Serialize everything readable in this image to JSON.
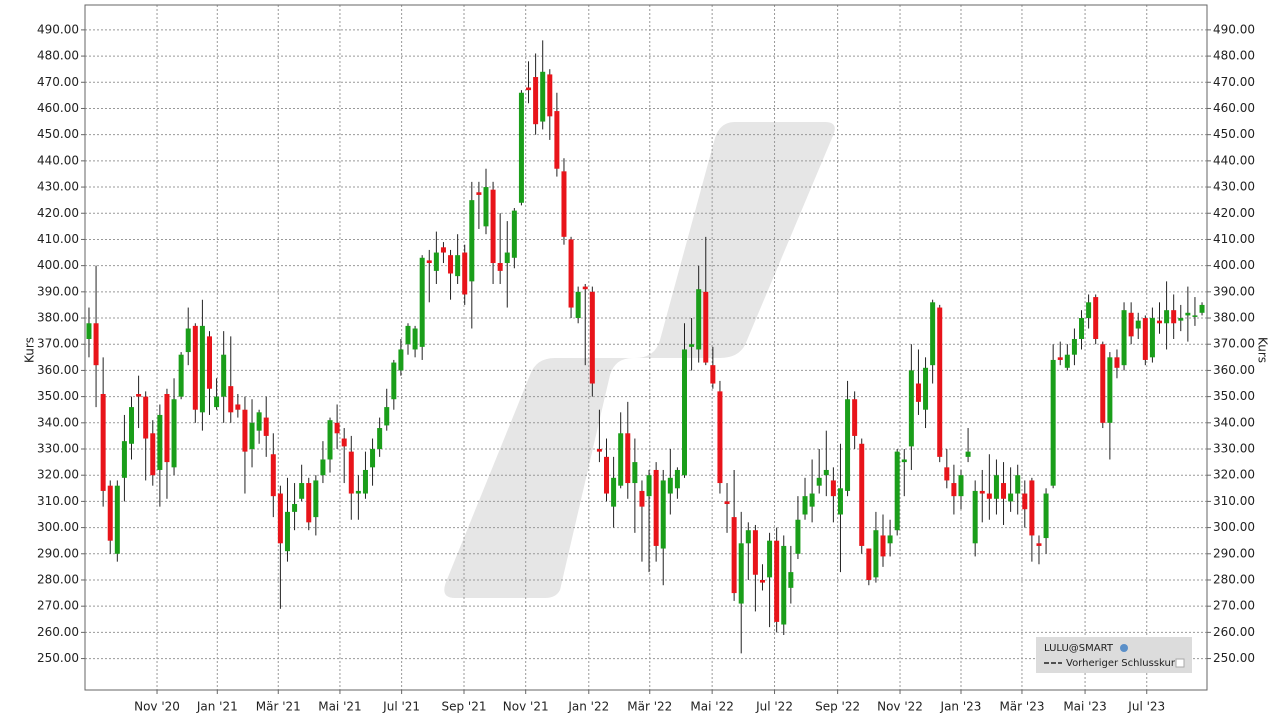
{
  "chart_data": {
    "type": "candlestick",
    "y_label": "Kurs",
    "ylim": [
      238,
      499.5
    ],
    "yticks": [
      {
        "value": 250,
        "label": "250.00"
      },
      {
        "value": 260,
        "label": "260.00"
      },
      {
        "value": 270,
        "label": "270.00"
      },
      {
        "value": 280,
        "label": "280.00"
      },
      {
        "value": 290,
        "label": "290.00"
      },
      {
        "value": 300,
        "label": "300.00"
      },
      {
        "value": 310,
        "label": "310.00"
      },
      {
        "value": 320,
        "label": "320.00"
      },
      {
        "value": 330,
        "label": "330.00"
      },
      {
        "value": 340,
        "label": "340.00"
      },
      {
        "value": 350,
        "label": "350.00"
      },
      {
        "value": 360,
        "label": "360.00"
      },
      {
        "value": 370,
        "label": "370.00"
      },
      {
        "value": 380,
        "label": "380.00"
      },
      {
        "value": 390,
        "label": "390.00"
      },
      {
        "value": 400,
        "label": "400.00"
      },
      {
        "value": 410,
        "label": "410.00"
      },
      {
        "value": 420,
        "label": "420.00"
      },
      {
        "value": 430,
        "label": "430.00"
      },
      {
        "value": 440,
        "label": "440.00"
      },
      {
        "value": 450,
        "label": "450.00"
      },
      {
        "value": 460,
        "label": "460.00"
      },
      {
        "value": 470,
        "label": "470.00"
      },
      {
        "value": 480,
        "label": "480.00"
      },
      {
        "value": 490,
        "label": "490.00"
      }
    ],
    "xlim": [
      -0.56,
      157.7
    ],
    "xticks": [
      {
        "value": 9.6,
        "label": "Nov '20"
      },
      {
        "value": 18.1,
        "label": "Jan '21"
      },
      {
        "value": 26.7,
        "label": "Mär '21"
      },
      {
        "value": 35.4,
        "label": "Mai '21"
      },
      {
        "value": 44.1,
        "label": "Jul '21"
      },
      {
        "value": 52.9,
        "label": "Sep '21"
      },
      {
        "value": 61.6,
        "label": "Nov '21"
      },
      {
        "value": 70.5,
        "label": "Jan '22"
      },
      {
        "value": 79.1,
        "label": "Mär '22"
      },
      {
        "value": 87.9,
        "label": "Mai '22"
      },
      {
        "value": 96.7,
        "label": "Jul '22"
      },
      {
        "value": 105.6,
        "label": "Sep '22"
      },
      {
        "value": 114.4,
        "label": "Nov '22"
      },
      {
        "value": 123,
        "label": "Jan '23"
      },
      {
        "value": 131.6,
        "label": "Mär '23"
      },
      {
        "value": 140.5,
        "label": "Mai '23"
      },
      {
        "value": 149.2,
        "label": "Jul '23"
      }
    ],
    "grid": true,
    "up_color": "#1a9e1a",
    "down_color": "#e8141a",
    "legend": {
      "position": "bottom right",
      "title": "LULU@SMART",
      "entries": [
        "Vorheriger Schlusskurs"
      ]
    },
    "open": [
      372,
      378,
      351,
      316,
      290,
      319,
      332,
      351,
      350,
      336,
      322,
      351,
      323,
      350,
      367,
      377,
      344,
      373,
      346,
      350,
      354,
      347,
      345,
      330,
      337,
      342,
      328,
      313,
      291,
      306,
      311,
      317,
      304,
      320,
      326,
      340,
      334,
      329,
      313,
      313,
      323,
      330,
      339,
      349,
      360,
      370,
      368,
      369,
      402,
      398,
      407,
      404,
      396,
      405,
      394,
      428,
      415,
      429,
      401,
      401,
      403,
      424,
      468,
      472,
      455,
      473,
      459,
      436,
      410,
      380,
      392,
      390,
      330,
      327,
      308,
      316,
      336,
      317,
      314,
      312,
      322,
      292,
      313,
      315,
      320,
      369,
      368,
      390,
      362,
      352,
      310,
      304,
      271,
      294,
      299,
      280,
      281,
      295,
      263,
      277,
      290,
      305,
      308,
      316,
      320,
      318,
      305,
      314,
      349,
      332,
      292,
      281,
      297,
      294,
      299,
      325,
      331,
      355,
      345,
      362,
      384,
      323,
      317,
      312,
      327,
      294,
      314,
      313,
      311,
      317,
      310,
      313,
      313,
      318,
      294,
      296,
      316,
      365,
      361,
      366,
      372,
      380,
      388,
      370,
      340,
      365,
      362,
      382,
      376,
      380,
      365,
      379,
      378,
      383,
      379,
      381,
      381,
      382
    ],
    "high": [
      384,
      400,
      365,
      318,
      318,
      343,
      350,
      358,
      352,
      341,
      347,
      353,
      357,
      367,
      384,
      378,
      387,
      375,
      357,
      375,
      373,
      351,
      350,
      349,
      345,
      350,
      336,
      316,
      319,
      317,
      324,
      319,
      320,
      333,
      342,
      347,
      338,
      335,
      320,
      329,
      334,
      342,
      353,
      364,
      372,
      378,
      377,
      404,
      406,
      413,
      409,
      406,
      412,
      408,
      432,
      432,
      437,
      432,
      420,
      417,
      422,
      467,
      478,
      481,
      486,
      475,
      466,
      441,
      411,
      392,
      393,
      392,
      345,
      334,
      327,
      344,
      348,
      334,
      318,
      322,
      325,
      322,
      330,
      323,
      378,
      380,
      400,
      411,
      369,
      356,
      317,
      322,
      306,
      302,
      301,
      286,
      298,
      300,
      297,
      293,
      312,
      319,
      326,
      330,
      337,
      323,
      332,
      356,
      352,
      334,
      292,
      306,
      305,
      303,
      330,
      330,
      370,
      368,
      365,
      387,
      385,
      330,
      324,
      322,
      338,
      318,
      322,
      328,
      326,
      325,
      323,
      324,
      318,
      319,
      297,
      315,
      370,
      371,
      370,
      376,
      383,
      389,
      389,
      371,
      367,
      368,
      386,
      386,
      382,
      381,
      384,
      386,
      394,
      389,
      385,
      392,
      388,
      386
    ],
    "low": [
      365,
      346,
      308,
      290,
      287,
      310,
      326,
      338,
      318,
      316,
      308,
      311,
      320,
      349,
      362,
      340,
      337,
      343,
      345,
      340,
      340,
      342,
      313,
      323,
      332,
      327,
      304,
      269,
      287,
      299,
      310,
      299,
      297,
      317,
      321,
      330,
      317,
      303,
      303,
      311,
      316,
      327,
      337,
      345,
      358,
      366,
      365,
      364,
      386,
      393,
      401,
      387,
      393,
      385,
      376,
      414,
      412,
      393,
      393,
      384,
      399,
      423,
      462,
      450,
      452,
      448,
      434,
      408,
      380,
      378,
      362,
      350,
      325,
      310,
      300,
      315,
      311,
      298,
      287,
      283,
      287,
      278,
      305,
      311,
      319,
      360,
      363,
      362,
      353,
      313,
      298,
      272,
      252,
      280,
      268,
      276,
      262,
      260,
      259,
      271,
      288,
      303,
      302,
      313,
      312,
      302,
      283,
      312,
      330,
      290,
      278,
      279,
      285,
      289,
      297,
      312,
      322,
      343,
      338,
      355,
      325,
      315,
      305,
      307,
      325,
      289,
      302,
      303,
      305,
      301,
      306,
      305,
      300,
      287,
      286,
      290,
      315,
      362,
      360,
      362,
      368,
      376,
      370,
      338,
      326,
      357,
      360,
      370,
      372,
      362,
      363,
      374,
      368,
      372,
      375,
      371,
      377,
      381
    ],
    "close": [
      378,
      362,
      314,
      295,
      316,
      333,
      346,
      350,
      334,
      320,
      343,
      325,
      349,
      366,
      376,
      345,
      377,
      353,
      350,
      366,
      344,
      345,
      329,
      340,
      344,
      335,
      312,
      294,
      306,
      309,
      317,
      302,
      318,
      326,
      341,
      336,
      331,
      313,
      314,
      322,
      330,
      338,
      346,
      363,
      368,
      377,
      376,
      403,
      401,
      405,
      405,
      397,
      404,
      389,
      425,
      427,
      430,
      401,
      398,
      405,
      421,
      466,
      467,
      454,
      474,
      457,
      437,
      411,
      384,
      390,
      391,
      355,
      329,
      313,
      319,
      336,
      317,
      325,
      308,
      320,
      293,
      318,
      319,
      322,
      368,
      370,
      391,
      363,
      355,
      317,
      309,
      275,
      294,
      299,
      282,
      279,
      295,
      264,
      293,
      283,
      303,
      312,
      313,
      319,
      322,
      312,
      315,
      349,
      335,
      293,
      280,
      299,
      289,
      297,
      329,
      326,
      360,
      348,
      361,
      386,
      327,
      318,
      312,
      320,
      329,
      314,
      313,
      311,
      320,
      311,
      313,
      320,
      307,
      297,
      293,
      313,
      364,
      364,
      366,
      372,
      380,
      386,
      372,
      340,
      365,
      361,
      383,
      373,
      379,
      364,
      380,
      378,
      383,
      378,
      380,
      382,
      381,
      385
    ]
  }
}
